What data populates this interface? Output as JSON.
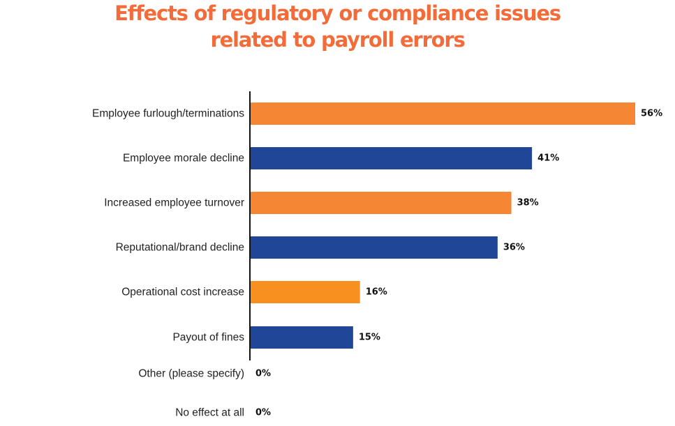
{
  "chart_data": {
    "type": "bar",
    "orientation": "horizontal",
    "title_lines": [
      "Effects of regulatory or compliance issues",
      "related to payroll errors"
    ],
    "xlabel": "",
    "ylabel": "",
    "xlim": [
      0,
      56
    ],
    "grid": false,
    "legend": "none",
    "categories": [
      "Employee furlough/terminations",
      "Employee morale decline",
      "Increased employee turnover",
      "Reputational/brand decline",
      "Operational cost increase",
      "Payout of fines",
      "Other (please specify)",
      "No effect at all"
    ],
    "values": [
      56,
      41,
      38,
      36,
      16,
      15,
      0,
      0
    ],
    "value_labels": [
      "56%",
      "41%",
      "38%",
      "36%",
      "16%",
      "15%",
      "0%",
      "0%"
    ],
    "colors": [
      "#f58634",
      "#1f4697",
      "#f58634",
      "#1f4697",
      "#f7901e",
      "#1f4697",
      "#f58634",
      "#1f4697"
    ],
    "title_color": "#f26b38",
    "axis_color": "#111111"
  }
}
